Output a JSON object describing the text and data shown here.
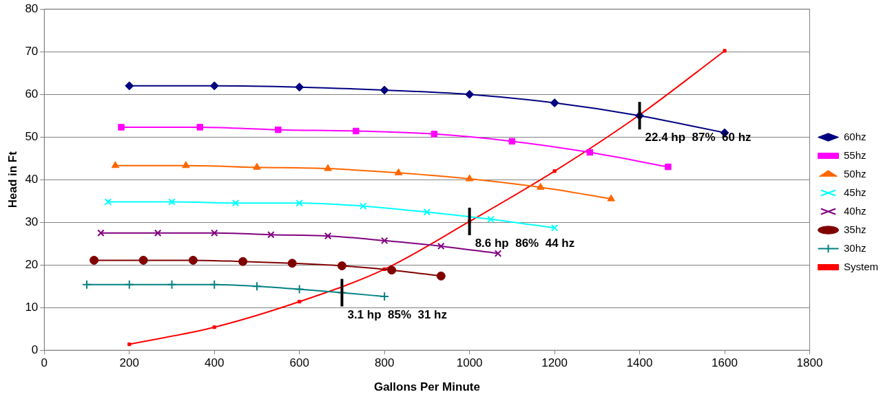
{
  "chart_data": {
    "type": "line",
    "xlabel": "Gallons Per Minute",
    "ylabel": "Head in Ft",
    "xlim": [
      0,
      1800
    ],
    "xticks": [
      0,
      200,
      400,
      600,
      800,
      1000,
      1200,
      1400,
      1600,
      1800
    ],
    "ylim": [
      0,
      80
    ],
    "yticks": [
      0,
      10,
      20,
      30,
      40,
      50,
      60,
      70,
      80
    ],
    "grid": "y",
    "legend": "right",
    "line_style": "solid",
    "series": [
      {
        "name": "60hz",
        "color": "#000080",
        "marker": "diamond",
        "x": [
          200,
          400,
          600,
          800,
          1000,
          1200,
          1400,
          1600
        ],
        "values": [
          62,
          62,
          61.7,
          61,
          60,
          58,
          55,
          51
        ]
      },
      {
        "name": "55hz",
        "color": "#ff00ff",
        "marker": "square",
        "x": [
          181,
          366,
          550,
          733,
          917,
          1100,
          1283,
          1467
        ],
        "values": [
          52.3,
          52.3,
          51.7,
          51.4,
          50.7,
          49,
          46.4,
          43
        ]
      },
      {
        "name": "50hz",
        "color": "#ff6600",
        "marker": "triangle",
        "x": [
          167,
          333,
          500,
          667,
          833,
          1000,
          1167,
          1333
        ],
        "values": [
          43.3,
          43.3,
          42.9,
          42.6,
          41.6,
          40.2,
          38.2,
          35.5
        ]
      },
      {
        "name": "45hz",
        "color": "#00ffff",
        "marker": "cross",
        "x": [
          150,
          300,
          450,
          600,
          750,
          900,
          1050,
          1200
        ],
        "values": [
          34.8,
          34.8,
          34.5,
          34.5,
          33.8,
          32.4,
          30.7,
          28.7
        ]
      },
      {
        "name": "40hz",
        "color": "#800080",
        "marker": "cross",
        "x": [
          133,
          267,
          400,
          533,
          667,
          800,
          933,
          1067
        ],
        "values": [
          27.5,
          27.5,
          27.5,
          27.1,
          26.8,
          25.7,
          24.4,
          22.7
        ]
      },
      {
        "name": "35hz",
        "color": "#800000",
        "marker": "circle",
        "x": [
          117,
          233,
          350,
          467,
          583,
          700,
          817,
          933
        ],
        "values": [
          21.1,
          21.1,
          21.1,
          20.8,
          20.4,
          19.8,
          18.8,
          17.4
        ]
      },
      {
        "name": "30hz",
        "color": "#008080",
        "marker": "plus",
        "x": [
          100,
          200,
          300,
          400,
          500,
          600,
          700,
          800
        ],
        "values": [
          15.4,
          15.4,
          15.4,
          15.4,
          15,
          14.3,
          13.5,
          12.6
        ]
      },
      {
        "name": "System",
        "color": "#ff0000",
        "marker": "square",
        "x": [
          200,
          400,
          600,
          800,
          1000,
          1200,
          1400,
          1600
        ],
        "values": [
          1.4,
          5.4,
          11.4,
          19,
          30.2,
          42,
          55.2,
          70.2
        ]
      }
    ],
    "annotations": [
      {
        "text": "3.1 hp  85%  31 hz",
        "x": 700,
        "y": 13.5
      },
      {
        "text": "8.6 hp  86%  44 hz",
        "x": 1000,
        "y": 30.2
      },
      {
        "text": "22.4 hp  87%  60 hz",
        "x": 1400,
        "y": 55
      }
    ]
  }
}
